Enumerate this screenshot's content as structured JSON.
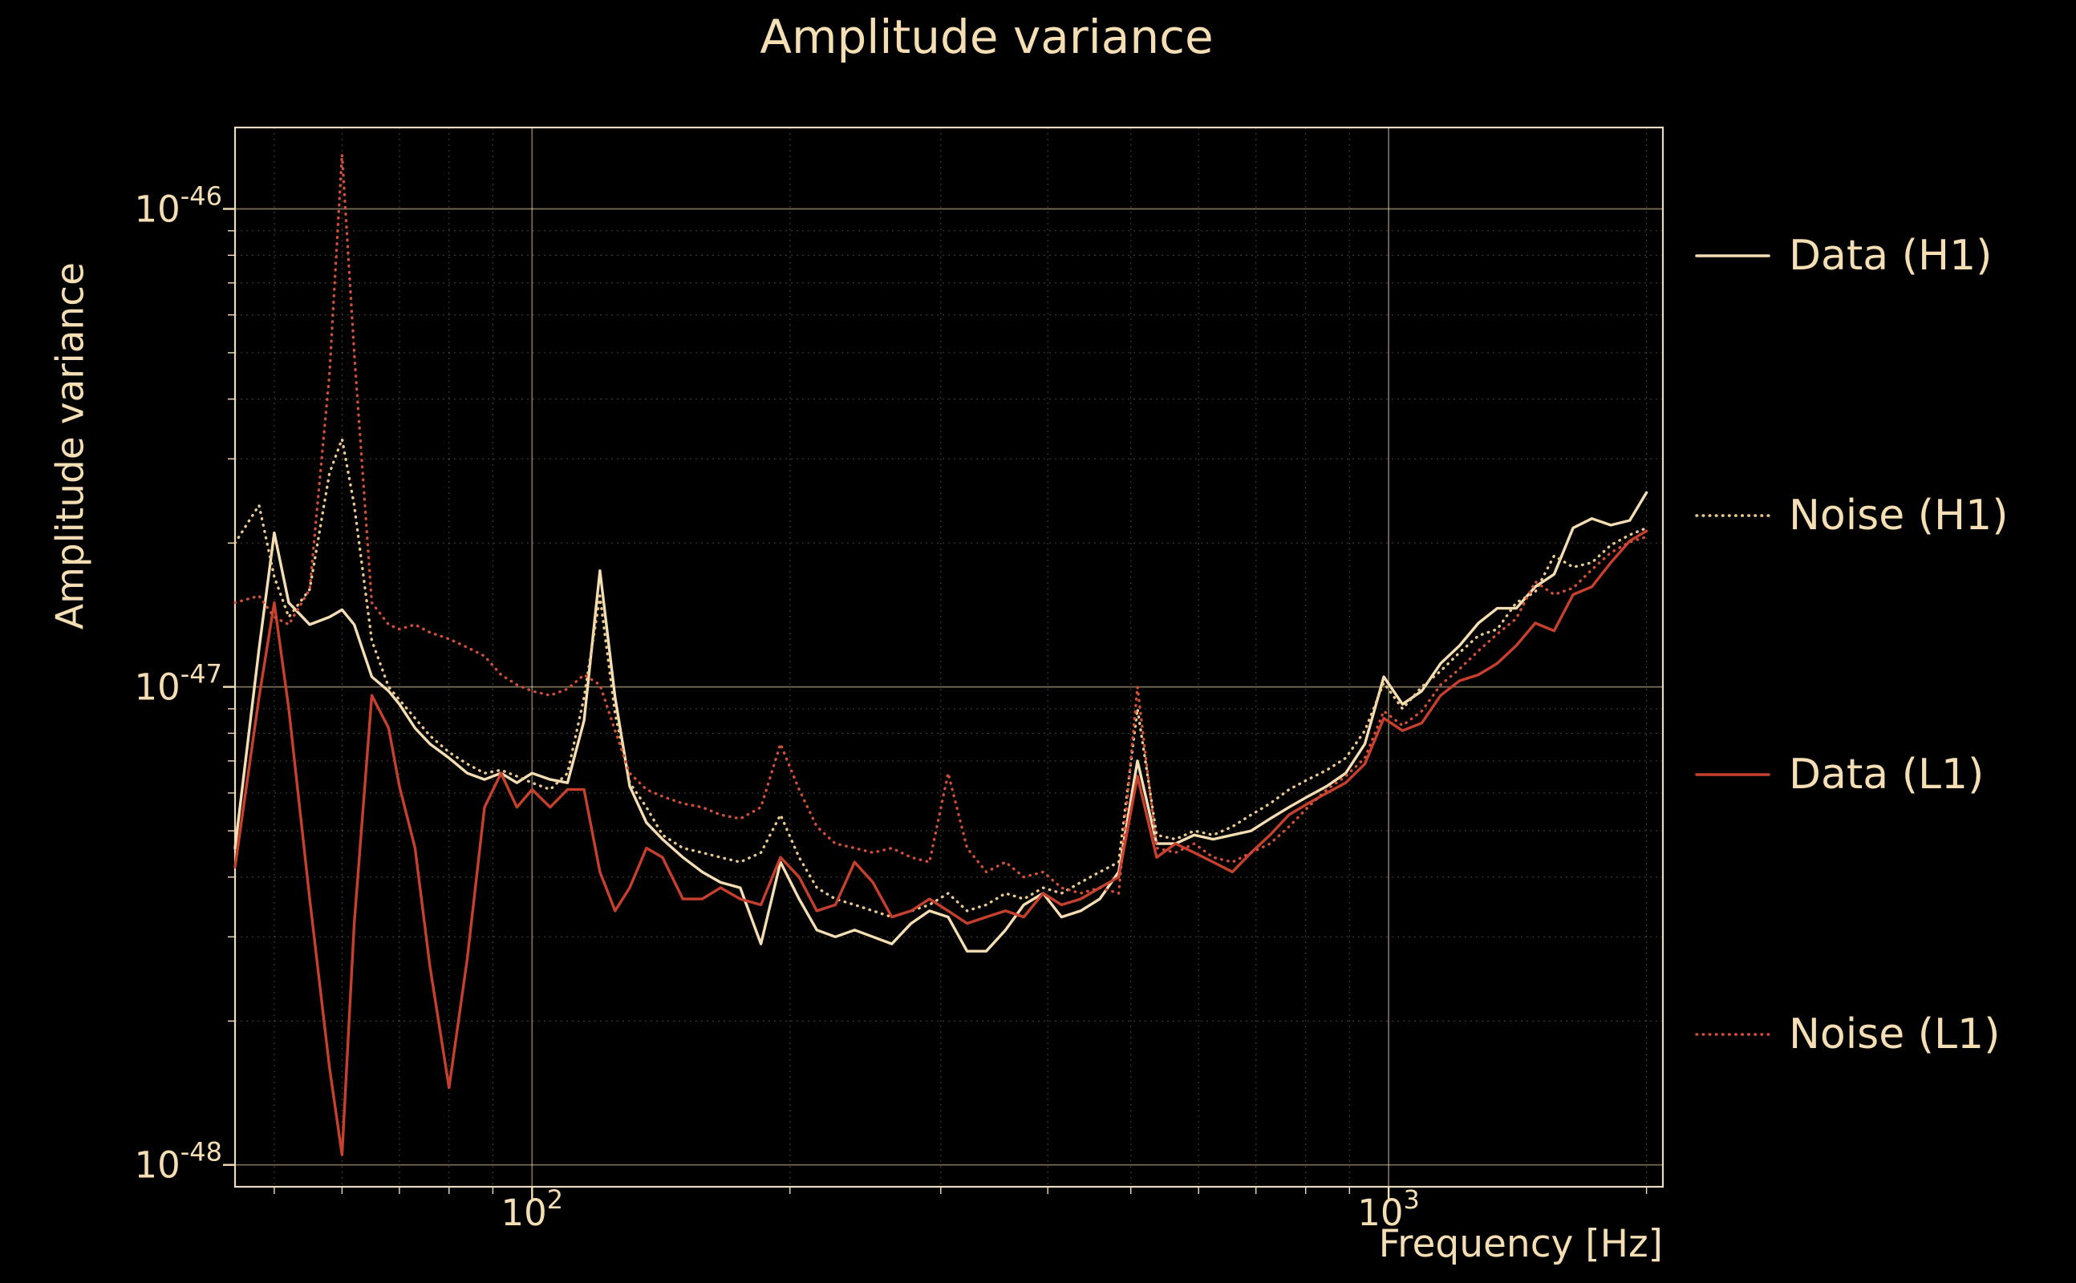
{
  "chart_data": {
    "type": "line",
    "title": "Amplitude variance",
    "xlabel": "Frequency [Hz]",
    "ylabel": "Amplitude variance",
    "x_scale": "log",
    "y_scale": "log",
    "xlim": [
      45,
      2090
    ],
    "ylim": [
      9e-49,
      1.48e-46
    ],
    "x_ticks": [
      {
        "exp": 2
      },
      {
        "exp": 3
      }
    ],
    "y_ticks": [
      {
        "exp": -46
      },
      {
        "exp": -47
      },
      {
        "exp": -48
      }
    ],
    "grid": true,
    "legend_position": "right-outside",
    "background": "#000000",
    "text_color": "#f5deb3",
    "grid_color": "#f5deb3",
    "spine_color": "#e9dcc2",
    "values_scale": 1e-48,
    "x": [
      45,
      48,
      50,
      52,
      55,
      58,
      60,
      62,
      65,
      68,
      70,
      73,
      76,
      80,
      84,
      88,
      92,
      96,
      100,
      105,
      110,
      115,
      120,
      125,
      130,
      136,
      142,
      150,
      158,
      166,
      175,
      185,
      195,
      205,
      215,
      226,
      238,
      250,
      263,
      277,
      291,
      306,
      322,
      339,
      357,
      375,
      395,
      415,
      437,
      460,
      484,
      509,
      536,
      564,
      593,
      624,
      657,
      691,
      727,
      765,
      805,
      847,
      891,
      938,
      987,
      1038,
      1093,
      1150,
      1210,
      1273,
      1339,
      1409,
      1483,
      1560,
      1642,
      1727,
      1817,
      1912,
      2000
    ],
    "series": [
      {
        "name": "Data (H1)",
        "style": "solid",
        "color": "#f5deb3",
        "values": [
          4.6,
          12,
          21,
          15,
          13.5,
          14,
          14.5,
          13.5,
          10.5,
          9.8,
          9.2,
          8.2,
          7.6,
          7.1,
          6.6,
          6.4,
          6.6,
          6.3,
          6.6,
          6.4,
          6.3,
          8.5,
          17.5,
          9.5,
          6.2,
          5.2,
          4.8,
          4.4,
          4.1,
          3.9,
          3.8,
          2.9,
          4.3,
          3.6,
          3.1,
          3.0,
          3.1,
          3.0,
          2.9,
          3.2,
          3.4,
          3.3,
          2.8,
          2.8,
          3.1,
          3.5,
          3.7,
          3.3,
          3.4,
          3.6,
          4.1,
          7.0,
          4.7,
          4.7,
          4.9,
          4.8,
          4.9,
          5.0,
          5.3,
          5.6,
          5.9,
          6.2,
          6.6,
          7.6,
          10.5,
          9.2,
          9.8,
          11.2,
          12.2,
          13.6,
          14.6,
          14.6,
          16.2,
          17.2,
          21.5,
          22.5,
          21.8,
          22.3,
          25.5
        ]
      },
      {
        "name": "Noise (H1)",
        "style": "dotted",
        "color": "#e9c98f",
        "values": [
          20,
          24,
          17,
          14,
          16,
          28,
          33,
          24,
          12.5,
          10,
          9.4,
          8.6,
          7.9,
          7.3,
          6.9,
          6.6,
          6.7,
          6.5,
          6.3,
          6.1,
          6.6,
          9.5,
          15.5,
          8.8,
          6.3,
          5.6,
          4.9,
          4.6,
          4.5,
          4.4,
          4.3,
          4.5,
          5.4,
          4.4,
          3.8,
          3.6,
          3.5,
          3.4,
          3.3,
          3.4,
          3.5,
          3.7,
          3.4,
          3.5,
          3.7,
          3.6,
          3.8,
          3.7,
          3.9,
          4.1,
          4.3,
          9.0,
          4.9,
          4.8,
          5.0,
          4.9,
          5.1,
          5.4,
          5.7,
          6.1,
          6.4,
          6.7,
          7.1,
          8.1,
          10.2,
          9.0,
          10.0,
          10.8,
          11.8,
          12.8,
          13.2,
          15.0,
          15.8,
          18.8,
          17.8,
          18.2,
          19.8,
          20.8,
          21.5
        ]
      },
      {
        "name": "Data (L1)",
        "style": "solid",
        "color": "#c7402e",
        "values": [
          4.2,
          9.5,
          15,
          9,
          3.6,
          1.6,
          1.05,
          3.2,
          9.6,
          8.2,
          6.2,
          4.6,
          2.6,
          1.45,
          2.7,
          5.6,
          6.6,
          5.6,
          6.1,
          5.6,
          6.1,
          6.1,
          4.1,
          3.4,
          3.8,
          4.6,
          4.4,
          3.6,
          3.6,
          3.8,
          3.6,
          3.5,
          4.4,
          4.0,
          3.4,
          3.5,
          4.3,
          3.9,
          3.3,
          3.4,
          3.6,
          3.4,
          3.2,
          3.3,
          3.4,
          3.3,
          3.7,
          3.5,
          3.6,
          3.8,
          4.0,
          6.5,
          4.4,
          4.7,
          4.5,
          4.3,
          4.1,
          4.5,
          4.9,
          5.4,
          5.7,
          6.0,
          6.3,
          6.9,
          8.6,
          8.1,
          8.4,
          9.6,
          10.3,
          10.6,
          11.2,
          12.2,
          13.6,
          13.1,
          15.6,
          16.2,
          18.2,
          20.2,
          21.2
        ]
      },
      {
        "name": "Noise (L1)",
        "style": "dotted",
        "color": "#cf4f38",
        "values": [
          15,
          15.5,
          14,
          13.5,
          16,
          45,
          130,
          50,
          15,
          13.5,
          13.2,
          13.5,
          13,
          12.6,
          12.1,
          11.6,
          10.6,
          10.1,
          9.8,
          9.6,
          9.9,
          10.6,
          10.1,
          8.1,
          6.6,
          6.1,
          5.9,
          5.7,
          5.6,
          5.4,
          5.3,
          5.6,
          7.6,
          6.1,
          5.1,
          4.7,
          4.6,
          4.5,
          4.6,
          4.4,
          4.3,
          6.6,
          4.6,
          4.1,
          4.3,
          4.0,
          4.1,
          3.8,
          3.7,
          3.8,
          3.7,
          10.0,
          4.6,
          4.5,
          4.7,
          4.4,
          4.3,
          4.5,
          4.7,
          5.1,
          5.6,
          6.1,
          6.5,
          7.1,
          8.9,
          8.3,
          8.9,
          10.1,
          10.9,
          11.9,
          12.9,
          13.9,
          16.6,
          15.6,
          16.1,
          17.6,
          19.1,
          20.1,
          20.6
        ]
      }
    ]
  }
}
